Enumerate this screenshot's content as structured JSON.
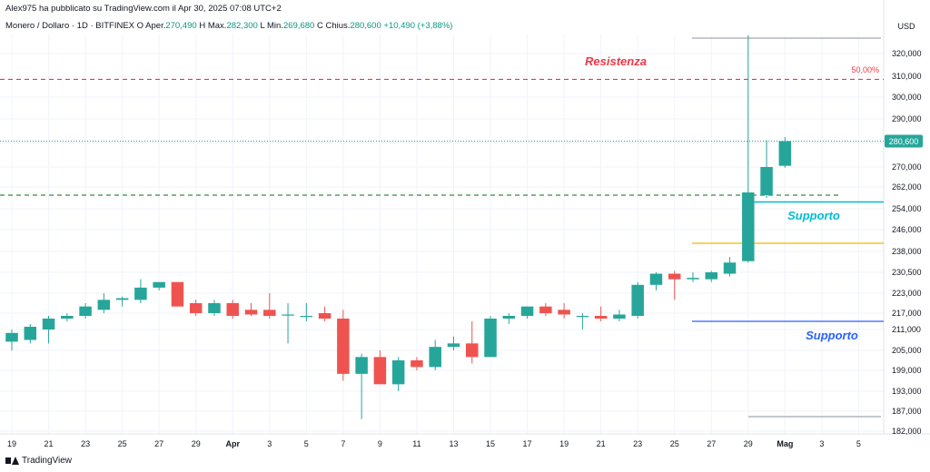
{
  "header": {
    "published": "Alex975 ha pubblicato su TradingView.com il Apr 30, 2025 07:08 UTC+2",
    "symbol": "Monero / Dollaro · 1D · BITFINEX",
    "open_label": "O",
    "open_text": "Aper.",
    "open_value": "270,490",
    "high_label": "H",
    "high_text": "Max.",
    "high_value": "282,300",
    "low_label": "L",
    "low_text": "Min.",
    "low_value": "269,680",
    "close_label": "C",
    "close_text": "Chius.",
    "close_value": "280,600",
    "change_value": "+10,490 (+3,88%)"
  },
  "footer": {
    "brand": "TradingView"
  },
  "colors": {
    "up": "#26a69a",
    "down": "#ef5350",
    "resistance": "#f23645",
    "support_green": "#388e3c",
    "support_cyan": "#00bcd4",
    "support_blue": "#2962ff",
    "orange": "#f5b700",
    "grid": "#f0f3fa"
  },
  "chart_data": {
    "type": "candlestick",
    "currency": "USD",
    "y_ticks": [
      "182,000",
      "187,000",
      "193,000",
      "199,000",
      "205,000",
      "211,000",
      "217,000",
      "223,000",
      "230,500",
      "238,000",
      "246,000",
      "254,000",
      "262,000",
      "270,000",
      "280,000",
      "290,000",
      "300,000",
      "310,000",
      "320,000"
    ],
    "x_ticks": [
      "19",
      "21",
      "23",
      "25",
      "27",
      "29",
      "Apr",
      "3",
      "5",
      "7",
      "9",
      "11",
      "13",
      "15",
      "17",
      "19",
      "21",
      "23",
      "25",
      "27",
      "29",
      "Mag",
      "3",
      "5"
    ],
    "last_price_label": "280,600",
    "candles": [
      {
        "o": 207.5,
        "h": 211,
        "l": 205,
        "c": 210
      },
      {
        "o": 208,
        "h": 213,
        "l": 207,
        "c": 212
      },
      {
        "o": 211,
        "h": 216,
        "l": 207,
        "c": 215
      },
      {
        "o": 215,
        "h": 217,
        "l": 214,
        "c": 216
      },
      {
        "o": 216,
        "h": 220,
        "l": 215,
        "c": 219
      },
      {
        "o": 218,
        "h": 223,
        "l": 217,
        "c": 221
      },
      {
        "o": 221,
        "h": 222,
        "l": 219,
        "c": 221.5
      },
      {
        "o": 221,
        "h": 228,
        "l": 220,
        "c": 225
      },
      {
        "o": 225,
        "h": 226,
        "l": 224,
        "c": 227
      },
      {
        "o": 227,
        "h": 226,
        "l": 219,
        "c": 219
      },
      {
        "o": 220,
        "h": 221,
        "l": 216,
        "c": 217
      },
      {
        "o": 217,
        "h": 221,
        "l": 216,
        "c": 220
      },
      {
        "o": 220,
        "h": 221,
        "l": 215,
        "c": 216
      },
      {
        "o": 218,
        "h": 220,
        "l": 216,
        "c": 216.5
      },
      {
        "o": 218,
        "h": 223,
        "l": 215,
        "c": 216
      },
      {
        "o": 216.5,
        "h": 220,
        "l": 207,
        "c": 216.5
      },
      {
        "o": 216,
        "h": 220,
        "l": 214,
        "c": 216
      },
      {
        "o": 217,
        "h": 219,
        "l": 214,
        "c": 215
      },
      {
        "o": 215,
        "h": 218,
        "l": 196,
        "c": 198
      },
      {
        "o": 198,
        "h": 204,
        "l": 185,
        "c": 203
      },
      {
        "o": 203,
        "h": 205,
        "l": 196,
        "c": 195
      },
      {
        "o": 195,
        "h": 203,
        "l": 193,
        "c": 202
      },
      {
        "o": 202,
        "h": 203,
        "l": 199,
        "c": 200
      },
      {
        "o": 200,
        "h": 208,
        "l": 199,
        "c": 206
      },
      {
        "o": 206,
        "h": 209,
        "l": 205,
        "c": 207
      },
      {
        "o": 207,
        "h": 214,
        "l": 201,
        "c": 203
      },
      {
        "o": 203,
        "h": 216,
        "l": 203,
        "c": 215
      },
      {
        "o": 215,
        "h": 217,
        "l": 213,
        "c": 216
      },
      {
        "o": 216,
        "h": 219,
        "l": 215,
        "c": 219
      },
      {
        "o": 219,
        "h": 220,
        "l": 216,
        "c": 217
      },
      {
        "o": 218,
        "h": 220,
        "l": 215,
        "c": 216.5
      },
      {
        "o": 216,
        "h": 217,
        "l": 211,
        "c": 216
      },
      {
        "o": 216,
        "h": 219,
        "l": 214,
        "c": 215
      },
      {
        "o": 215,
        "h": 218,
        "l": 214,
        "c": 216.5
      },
      {
        "o": 216,
        "h": 227,
        "l": 215,
        "c": 226
      },
      {
        "o": 226,
        "h": 230.5,
        "l": 224,
        "c": 230
      },
      {
        "o": 230,
        "h": 231,
        "l": 221,
        "c": 228
      },
      {
        "o": 228,
        "h": 230.5,
        "l": 227,
        "c": 228.5
      },
      {
        "o": 228,
        "h": 231,
        "l": 227,
        "c": 230.5
      },
      {
        "o": 230,
        "h": 236,
        "l": 229,
        "c": 234
      },
      {
        "o": 234.5,
        "h": 328,
        "l": 234,
        "c": 260
      },
      {
        "o": 259,
        "h": 281,
        "l": 258,
        "c": 270
      },
      {
        "o": 270.5,
        "h": 282.3,
        "l": 269.7,
        "c": 280.6
      }
    ],
    "annotations": [
      {
        "text": "Resistenza",
        "type": "dashed",
        "level": 308.5
      },
      {
        "text": "50,00%",
        "type": "fib_label",
        "level": 308.5
      },
      {
        "text": "Supporto",
        "type": "solid",
        "level": 256.5
      },
      {
        "text": "Supporto",
        "type": "solid",
        "level": 214
      },
      {
        "text": "",
        "type": "solid",
        "level": 241
      },
      {
        "text": "",
        "type": "dashed",
        "level": 259
      }
    ]
  }
}
